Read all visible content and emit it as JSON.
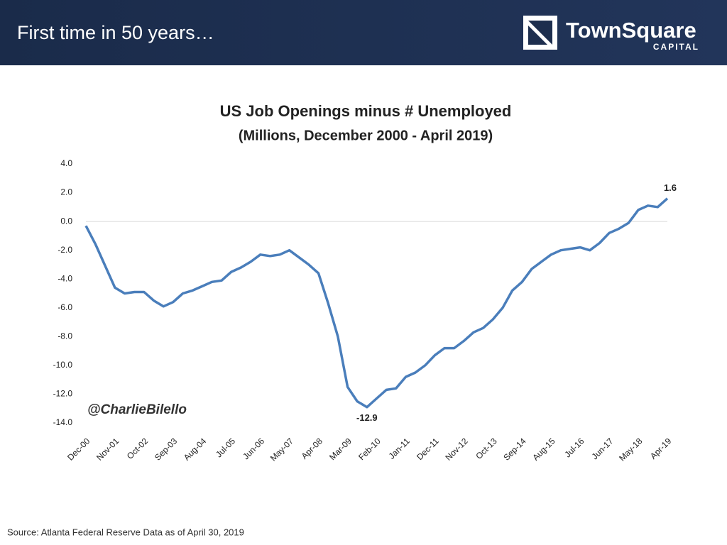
{
  "header": {
    "title": "First time in 50 years…",
    "logo_name": "TownSquare",
    "logo_sub": "CAPITAL"
  },
  "chart_data": {
    "type": "line",
    "title": "US Job Openings minus # Unemployed",
    "subtitle": "(Millions, December 2000 - April 2019)",
    "annotation": "@CharlieBilello",
    "categories": [
      "Dec-00",
      null,
      null,
      "Nov-01",
      null,
      null,
      "Oct-02",
      null,
      null,
      "Sep-03",
      null,
      null,
      "Aug-04",
      null,
      null,
      "Jul-05",
      null,
      null,
      "Jun-06",
      null,
      null,
      "May-07",
      null,
      null,
      "Apr-08",
      null,
      null,
      "Mar-09",
      null,
      null,
      "Feb-10",
      null,
      null,
      "Jan-11",
      null,
      null,
      "Dec-11",
      null,
      null,
      "Nov-12",
      null,
      null,
      "Oct-13",
      null,
      null,
      "Sep-14",
      null,
      null,
      "Aug-15",
      null,
      null,
      "Jul-16",
      null,
      null,
      "Jun-17",
      null,
      null,
      "May-18",
      null,
      null,
      "Apr-19"
    ],
    "values": [
      -0.3,
      -1.6,
      -3.1,
      -4.6,
      -5.0,
      -4.9,
      -4.9,
      -5.5,
      -5.9,
      -5.6,
      -5.0,
      -4.8,
      -4.5,
      -4.2,
      -4.1,
      -3.5,
      -3.2,
      -2.8,
      -2.3,
      -2.4,
      -2.3,
      -2.0,
      -2.5,
      -3.0,
      -3.6,
      -5.7,
      -8.0,
      -11.5,
      -12.5,
      -12.9,
      -12.3,
      -11.7,
      -11.6,
      -10.8,
      -10.5,
      -10.0,
      -9.3,
      -8.8,
      -8.8,
      -8.3,
      -7.7,
      -7.4,
      -6.8,
      -6.0,
      -4.8,
      -4.2,
      -3.3,
      -2.8,
      -2.3,
      -2.0,
      -1.9,
      -1.8,
      -2.0,
      -1.5,
      -0.8,
      -0.5,
      -0.1,
      0.8,
      1.1,
      1.0,
      1.6
    ],
    "color": "#4a7ebb",
    "ylim": [
      -14,
      4
    ],
    "yticks": [
      {
        "value": 4,
        "label": "4.0"
      },
      {
        "value": 2,
        "label": "2.0"
      },
      {
        "value": 0,
        "label": "0.0"
      },
      {
        "value": -2,
        "label": "-2.0"
      },
      {
        "value": -4,
        "label": "-4.0"
      },
      {
        "value": -6,
        "label": "-6.0"
      },
      {
        "value": -8,
        "label": "-8.0"
      },
      {
        "value": -10,
        "label": "-10.0"
      },
      {
        "value": -12,
        "label": "-12.0"
      },
      {
        "value": -14,
        "label": "-14.0"
      }
    ],
    "labeled_points": [
      29,
      60
    ]
  },
  "source": "Source: Atlanta Federal Reserve Data as of April 30, 2019"
}
